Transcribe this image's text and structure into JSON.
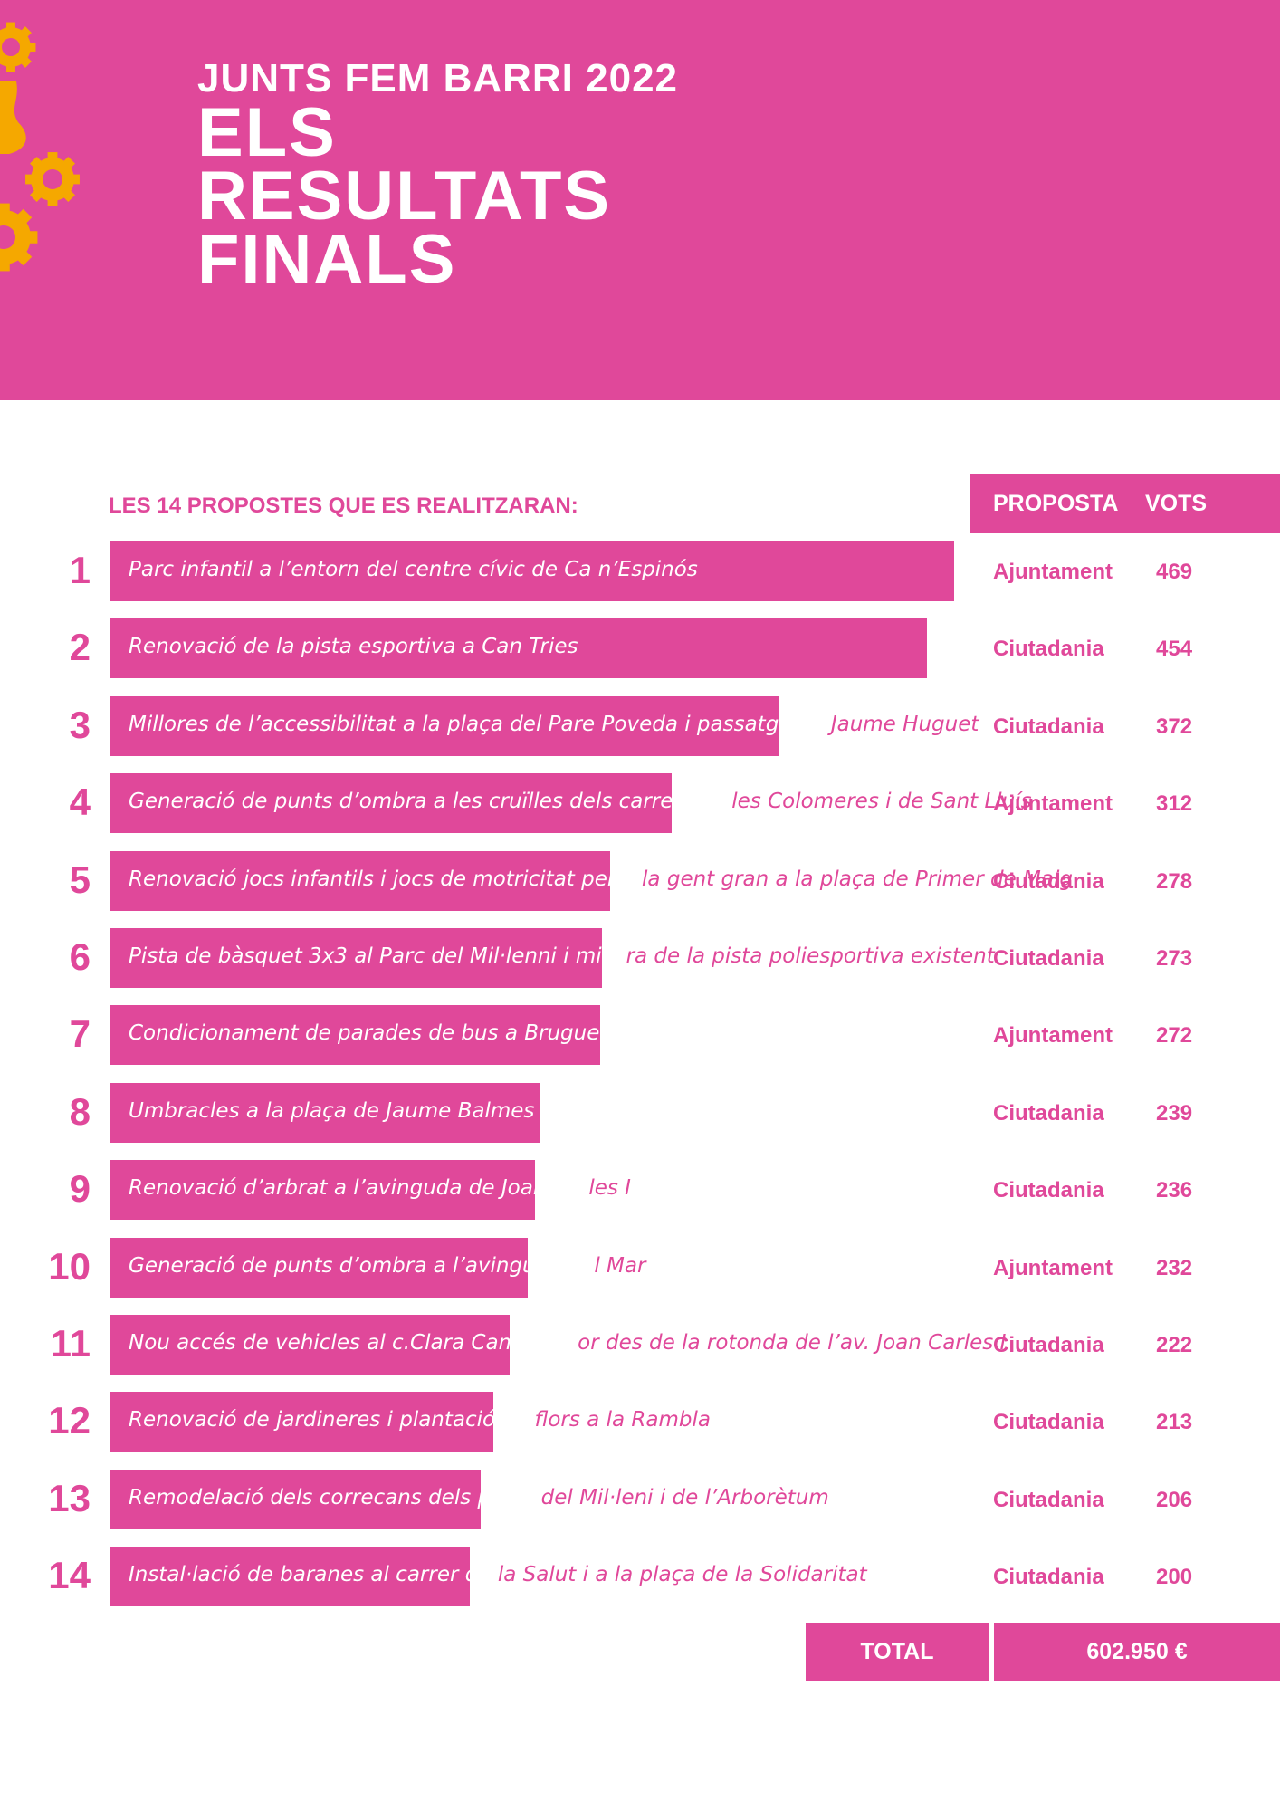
{
  "header": {
    "kicker": "JUNTS FEM BARRI 2022",
    "title": "ELS\nRESULTATS\nFINALS"
  },
  "section_heading": "LES 14 PROPOSTES QUE ES REALITZARAN:",
  "columns": {
    "proposta": "PROPOSTA",
    "vots": "VOTS"
  },
  "total": {
    "label": "TOTAL",
    "value": "602.950 €"
  },
  "colors": {
    "accent": "#e0489a",
    "gear": "#f5a800",
    "text_on_accent": "#ffffff"
  },
  "icons": [
    "gear-icon"
  ],
  "chart_data": {
    "type": "bar",
    "orientation": "horizontal",
    "categories": [
      "Parc infantil a l’entorn del centre cívic de Ca n’Espinós",
      "Renovació de la pista esportiva a Can Tries",
      "Millores de l’accessibilitat a la plaça del Pare Poveda i passatge de Jaume Huguet",
      "Generació de punts d’ombra a les cruïlles dels carrers de les Colomeres i de Sant Lluís",
      "Renovació jocs infantils i jocs de motricitat per a la gent gran a la plaça de Primer de Maig",
      "Pista de bàsquet 3x3 al Parc del Mil·lenni i millora de la pista poliesportiva existent",
      "Condicionament de parades de bus a Bruguers",
      "Umbracles a la plaça de Jaume Balmes",
      "Renovació d’arbrat a l’avinguda de Joan Carles I",
      "Generació de punts d’ombra a l’avinguda del Mar",
      "Nou accés de vehicles al c.Clara Campoamor des de la rotonda de l’av. Joan Carles I",
      "Renovació de jardineres i plantació de flors a la Rambla",
      "Remodelació dels correcans dels parcs del Mil·leni i de l’Arborètum",
      "Instal·lació de baranes al carrer de la Salut i a la plaça de la Solidaritat"
    ],
    "ranks": [
      "1",
      "2",
      "3",
      "4",
      "5",
      "6",
      "7",
      "8",
      "9",
      "10",
      "11",
      "12",
      "13",
      "14"
    ],
    "origin": [
      "Ajuntament",
      "Ciutadania",
      "Ciutadania",
      "Ajuntament",
      "Ciutadania",
      "Ciutadania",
      "Ajuntament",
      "Ciutadania",
      "Ciutadania",
      "Ajuntament",
      "Ciutadania",
      "Ciutadania",
      "Ciutadania",
      "Ciutadania"
    ],
    "values": [
      469,
      454,
      372,
      312,
      278,
      273,
      272,
      239,
      236,
      232,
      222,
      213,
      206,
      200
    ]
  }
}
